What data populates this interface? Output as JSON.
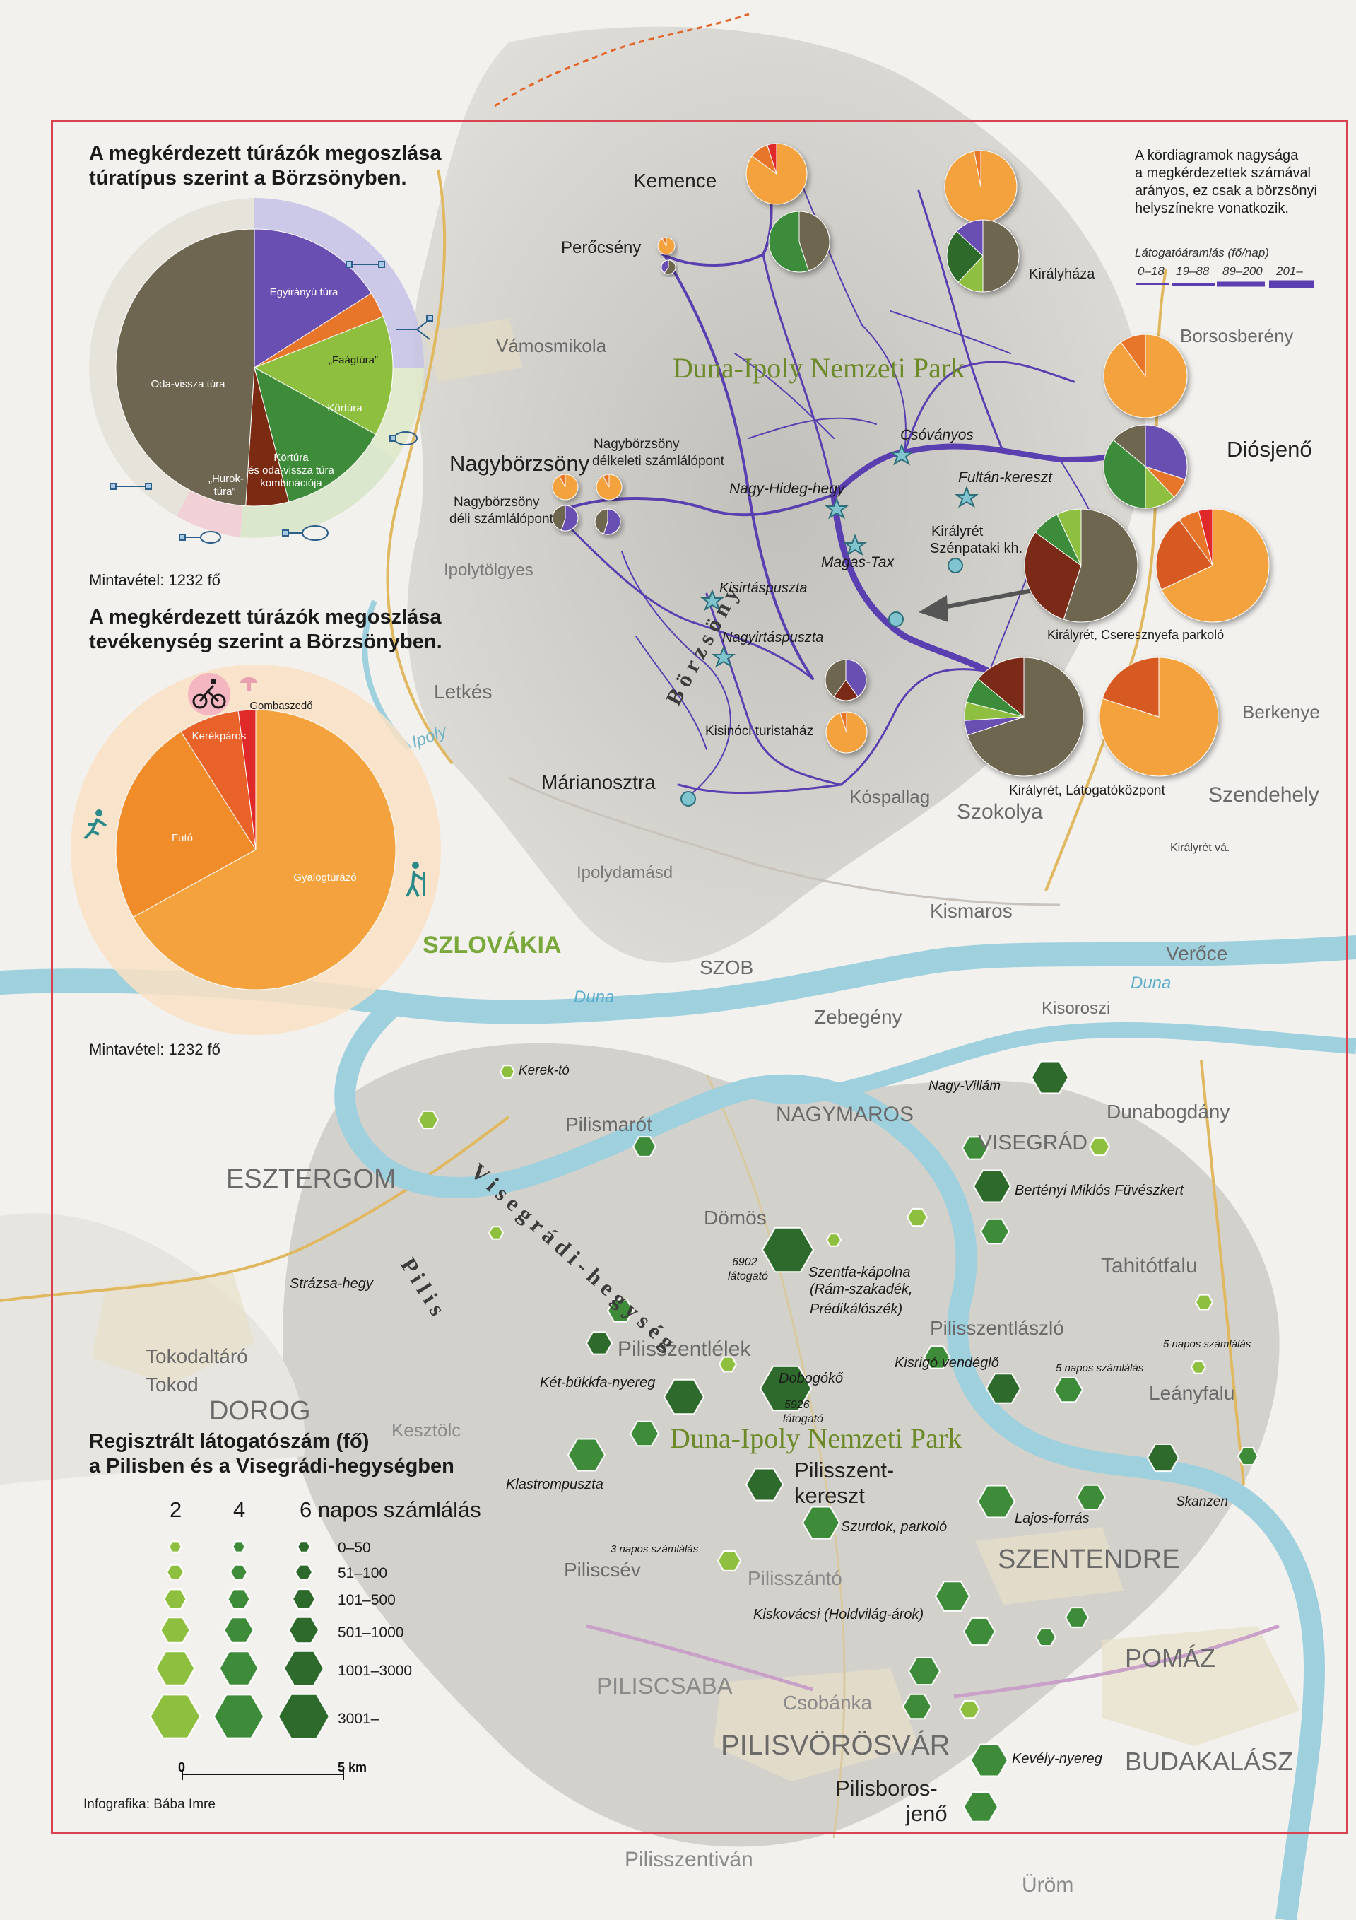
{
  "colors": {
    "purple": "#6a4fb3",
    "orange_light": "#f4a23d",
    "orange": "#e8762a",
    "orange_dark": "#d65a22",
    "green_light": "#8fbf3f",
    "green": "#3e8c3a",
    "green_dark": "#2d6a2b",
    "maroon": "#7a2b12",
    "olive": "#6e6650",
    "red": "#e02a2a",
    "frame": "#d9434f",
    "river": "#9fd0de",
    "park_text": "#6d8a2a"
  },
  "chart1": {
    "title_line1": "A megkérdezett túrázók megoszlása",
    "title_line2": "túratípus szerint a Börzsönyben.",
    "sample": "Mintavétel: 1232 fő",
    "slice_labels": {
      "egyiranyu": "Egyirányú túra",
      "faag": "„Faágtúra”",
      "kortura": "Körtúra",
      "kombinacio_1": "Körtúra",
      "kombinacio_2": "és oda-vissza túra",
      "kombinacio_3": "kombinációja",
      "hurok_1": "„Hurok-",
      "hurok_2": "túra”",
      "odavissza": "Oda-vissza túra"
    }
  },
  "chart2": {
    "title_line1": "A megkérdezett túrázók megoszlása",
    "title_line2": "tevékenység szerint a Börzsönyben.",
    "sample": "Mintavétel: 1232 fő",
    "slice_labels": {
      "gyalog": "Gyalogtúrázó",
      "futo": "Futó",
      "kerekparos": "Kerékpáros",
      "gomba": "Gombaszedő"
    }
  },
  "chart_data": [
    {
      "type": "pie",
      "title": "A megkérdezett túrázók megoszlása túratípus szerint a Börzsönyben.",
      "categories": [
        "Egyirányú túra",
        "„Faágtúra”",
        "Körtúra",
        "Körtúra és oda-vissza túra kombinációja",
        "„Hurok-túra”",
        "Oda-vissza túra"
      ],
      "values": [
        16,
        3,
        14,
        13,
        5,
        49
      ],
      "colors": [
        "#6a4fb3",
        "#e8762a",
        "#8fbf3f",
        "#3e8c3a",
        "#7a2b12",
        "#6e6650"
      ],
      "start_angle_deg": 0
    },
    {
      "type": "pie",
      "title": "A megkérdezett túrázók megoszlása tevékenység szerint a Börzsönyben.",
      "categories": [
        "Gyalogtúrázó",
        "Futó",
        "Kerékpáros",
        "Gombaszedő"
      ],
      "values": [
        67,
        24,
        7,
        2
      ],
      "colors": [
        "#f4a23d",
        "#f08c2a",
        "#e8622a",
        "#e02a2a"
      ],
      "start_angle_deg": 0
    }
  ],
  "note": {
    "line1": "A kördiagramok nagysága",
    "line2": "a megkérdezettek számával",
    "line3": "arányos, ez csak a börzsönyi",
    "line4": "helyszínekre vonatkozik."
  },
  "flow_legend": {
    "title": "Látogatóáramlás (fő/nap)",
    "t1": "0–18",
    "t2": "19–88",
    "t3": "89–200",
    "t4": "201–"
  },
  "places": {
    "kemence": "Kemence",
    "perocseny": "Perőcsény",
    "kiralyhaza": "Királyháza",
    "vamosmikola": "Vámosmikola",
    "borsosbereny": "Borsosberény",
    "diosjeno": "Diósjenő",
    "nagyborzsony": "Nagybörzsöny",
    "nb_del_1": "Nagybörzsöny",
    "nb_del_2": "délkeleti számlálópont",
    "nb_deli_1": "Nagybörzsöny",
    "nb_deli_2": "déli számlálópont",
    "ipolytolgyes": "Ipolytölgyes",
    "letkes": "Letkés",
    "ipoly": "Ipoly",
    "marianosztra": "Márianosztra",
    "kospallag": "Kóspallag",
    "szokolya": "Szokolya",
    "berkenye": "Berkenye",
    "szendehely": "Szendehely",
    "kiralyret_va": "Királyrét vá.",
    "ipolydamasd": "Ipolydamásd",
    "kismaros": "Kismaros",
    "veroce": "Verőce",
    "szob": "SZOB",
    "zebegeny": "Zebegény",
    "szlovakia": "SZLOVÁKIA",
    "duna_1": "Duna",
    "duna_2": "Duna",
    "kisoroszi": "Kisoroszi",
    "nagymaros": "NAGYMAROS",
    "visegrad": "VISEGRÁD",
    "dunabogdany": "Dunabogdány",
    "esztergom": "ESZTERGOM",
    "pilismarot": "Pilismarót",
    "domos": "Dömös",
    "tahitotfalu": "Tahitótfalu",
    "tokodaltaro": "Tokodaltáró",
    "tokod": "Tokod",
    "dorog": "DOROG",
    "pilisszentlelek": "Pilisszentlélek",
    "pilisszentlaszlo": "Pilisszentlászló",
    "leanyfalu": "Leányfalu",
    "kesztolc": "Kesztölc",
    "pilisszentkereszt_1": "Pilisszent-",
    "pilisszentkereszt_2": "kereszt",
    "szentendre": "SZENTENDRE",
    "piliscsev": "Piliscsév",
    "pilisszanto": "Pilisszántó",
    "pomaz": "POMÁZ",
    "piliscsaba": "PILISCSABA",
    "csobanka": "Csobánka",
    "pilisvorosvar": "PILISVÖRÖSVÁR",
    "budakalasz": "BUDAKALÁSZ",
    "pilisborosjeno_1": "Pilisboros-",
    "pilisborosjeno_2": "jenő",
    "pilisszentivan": "Pilisszentiván",
    "urom": "Üröm"
  },
  "parks": {
    "park1": "Duna-Ipoly Nemzeti Park",
    "park2": "Duna-Ipoly Nemzeti Park"
  },
  "ranges": {
    "borzsony": "B ö r z s ö n y",
    "visegradi": "V i s e g r á d i - h e g y s é g",
    "pilis": "P i l i s"
  },
  "spots": {
    "csovanyos": "Csóványos",
    "fultan": "Fultán-kereszt",
    "nagyhideg": "Nagy-Hideg-hegy",
    "magastax": "Magas-Tax",
    "kiralyret_sz_1": "Királyrét",
    "kiralyret_sz_2": "Szénpataki kh.",
    "kisirtas": "Kisirtáspuszta",
    "nagyirtas": "Nagyirtáspuszta",
    "kisinoci": "Kisinóci turistaház",
    "kiralyret_parkolo": "Királyrét, Cseresznyefa parkoló",
    "kiralyret_lk": "Királyrét, Látogatóközpont",
    "kerekto": "Kerek-tó",
    "nagyvillam": "Nagy-Villám",
    "bertenyi": "Bertényi Miklós Füvészkert",
    "strazsa": "Strázsa-hegy",
    "szentfa_1": "Szentfa-kápolna",
    "szentfa_2": "(Rám-szakadék,",
    "szentfa_3": "Prédikálószék)",
    "n6902_1": "6902",
    "n6902_2": "látogató",
    "ketbukkfa": "Két-bükkfa-nyereg",
    "dobogoko": "Dobogókő",
    "n5926_1": "5926",
    "n5926_2": "látogató",
    "kisrigo": "Kisrigó vendéglő",
    "napos5a": "5 napos számlálás",
    "napos5b": "5 napos számlálás",
    "klastrom": "Klastrompuszta",
    "szurdok": "Szurdok, parkoló",
    "lajos": "Lajos-forrás",
    "skanzen": "Skanzen",
    "napos3": "3 napos számlálás",
    "kiskovacsi": "Kiskovácsi (Holdvilág-árok)",
    "kevely": "Kevély-nyereg"
  },
  "legend_reg": {
    "title_line1": "Regisztrált látogatószám (fő)",
    "title_line2": "a Pilisben és a Visegrádi-hegységben",
    "col2": "2",
    "col4": "4",
    "col6": "6 napos számlálás",
    "r1": "0–50",
    "r2": "51–100",
    "r3": "101–500",
    "r4": "501–1000",
    "r5": "1001–3000",
    "r6": "3001–",
    "scale0": "0",
    "scale5": "5 km"
  },
  "credit": "Infografika: Bába Imre"
}
